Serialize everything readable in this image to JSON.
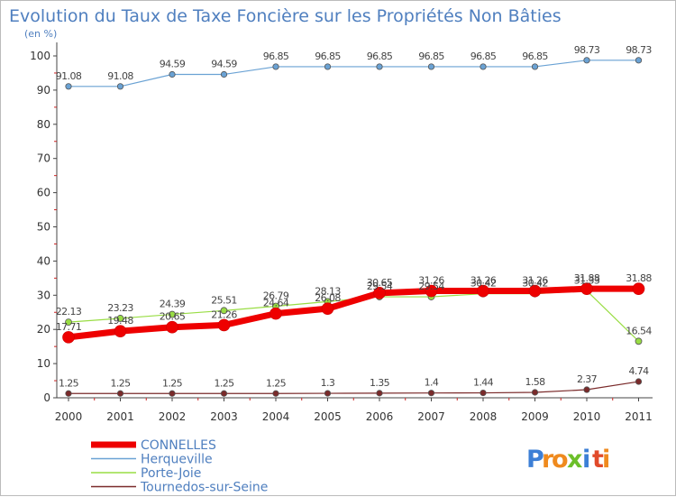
{
  "chart_data": {
    "type": "line",
    "title": "Evolution du Taux de Taxe Foncière sur les Propriétés Non Bâties",
    "ylabel": "(en %)",
    "xlabel": "",
    "ylim": [
      0,
      100
    ],
    "yticks": [
      "0",
      "10",
      "20",
      "30",
      "40",
      "50",
      "60",
      "70",
      "80",
      "90",
      "100"
    ],
    "categories": [
      "2000",
      "2001",
      "2002",
      "2003",
      "2004",
      "2005",
      "2006",
      "2007",
      "2008",
      "2009",
      "2010",
      "2011"
    ],
    "series": [
      {
        "name": "CONNELLES",
        "color": "#ee0000",
        "values": [
          17.71,
          19.48,
          20.65,
          21.26,
          24.64,
          26.08,
          30.65,
          31.26,
          31.26,
          31.26,
          31.88,
          31.88
        ],
        "labels": [
          "17.71",
          "19.48",
          "20.65",
          "21.26",
          "24.64",
          "26.08",
          "30.65",
          "31.26",
          "31.26",
          "31.26",
          "31.88",
          "31.88"
        ]
      },
      {
        "name": "Herqueville",
        "color": "#6aa2d4",
        "values": [
          91.08,
          91.08,
          94.59,
          94.59,
          96.85,
          96.85,
          96.85,
          96.85,
          96.85,
          96.85,
          98.73,
          98.73
        ],
        "labels": [
          "91.08",
          "91.08",
          "94.59",
          "94.59",
          "96.85",
          "96.85",
          "96.85",
          "96.85",
          "96.85",
          "96.85",
          "98.73",
          "98.73"
        ]
      },
      {
        "name": "Porte-Joie",
        "color": "#99dd44",
        "values": [
          22.13,
          23.23,
          24.39,
          25.51,
          26.79,
          28.13,
          29.54,
          29.54,
          30.42,
          30.42,
          31.33,
          16.54
        ],
        "labels": [
          "22.13",
          "23.23",
          "24.39",
          "25.51",
          "26.79",
          "28.13",
          "29.54",
          "29.54",
          "30.42",
          "30.42",
          "31.33",
          "16.54"
        ]
      },
      {
        "name": "Tournedos-sur-Seine",
        "color": "#7a2a2a",
        "values": [
          1.25,
          1.25,
          1.25,
          1.25,
          1.25,
          1.3,
          1.35,
          1.4,
          1.44,
          1.58,
          2.37,
          4.74
        ],
        "labels": [
          "1.25",
          "1.25",
          "1.25",
          "1.25",
          "1.25",
          "1.3",
          "1.35",
          "1.4",
          "1.44",
          "1.58",
          "2.37",
          "4.74"
        ]
      }
    ],
    "legend_position": "bottom-left",
    "grid": false
  },
  "logo": {
    "letters": [
      "P",
      "r",
      "o",
      "x",
      "i",
      "t",
      "i"
    ],
    "colors": [
      "#3c7fd6",
      "#ef8a1e",
      "#ef8a1e",
      "#6cbf2a",
      "#3c7fd6",
      "#e14a2a",
      "#ef8a1e"
    ]
  }
}
